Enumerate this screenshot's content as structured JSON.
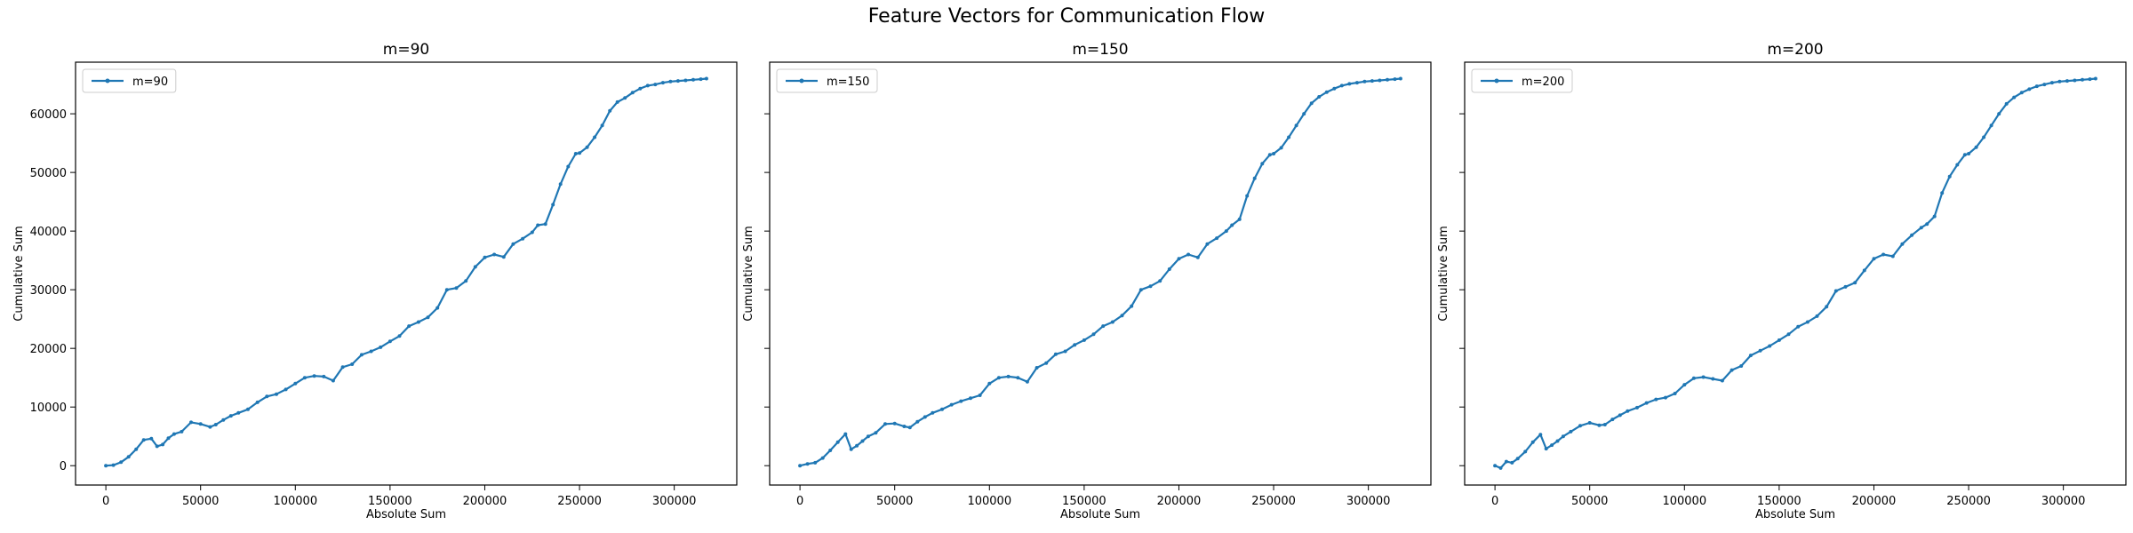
{
  "figure": {
    "title": "Feature Vectors for Communication Flow"
  },
  "style": {
    "line_color": "#1f77b4",
    "axis_color": "#000000"
  },
  "chart_data": [
    {
      "type": "line",
      "title": "m=90",
      "xlabel": "Absolute Sum",
      "ylabel": "Cumulative Sum",
      "xlim": [
        -16000,
        333000
      ],
      "ylim": [
        -3300,
        68800
      ],
      "xticks": [
        0,
        50000,
        100000,
        150000,
        200000,
        250000,
        300000
      ],
      "yticks": [
        0,
        10000,
        20000,
        30000,
        40000,
        50000,
        60000
      ],
      "grid": false,
      "legend": "upper-left",
      "series": [
        {
          "name": "m=90",
          "marker": "dot",
          "x": [
            0,
            4000,
            8000,
            12000,
            16000,
            20000,
            24000,
            27000,
            30000,
            33000,
            36000,
            40000,
            45000,
            50000,
            55000,
            58000,
            62000,
            66000,
            70000,
            75000,
            80000,
            85000,
            90000,
            95000,
            100000,
            105000,
            110000,
            115000,
            120000,
            125000,
            130000,
            135000,
            140000,
            145000,
            150000,
            155000,
            160000,
            165000,
            170000,
            175000,
            180000,
            185000,
            190000,
            195000,
            200000,
            205000,
            210000,
            215000,
            220000,
            225000,
            228000,
            232000,
            236000,
            240000,
            244000,
            248000,
            250000,
            254000,
            258000,
            262000,
            266000,
            270000,
            274000,
            278000,
            282000,
            286000,
            290000,
            294000,
            298000,
            302000,
            306000,
            310000,
            314000,
            317000
          ],
          "y": [
            0,
            100,
            600,
            1500,
            2800,
            4400,
            4600,
            3300,
            3600,
            4700,
            5400,
            5800,
            7400,
            7100,
            6600,
            7000,
            7800,
            8500,
            9000,
            9600,
            10800,
            11800,
            12200,
            13000,
            14000,
            15000,
            15300,
            15200,
            14500,
            16800,
            17300,
            18900,
            19500,
            20200,
            21200,
            22100,
            23800,
            24500,
            25300,
            26900,
            30000,
            30300,
            31500,
            33900,
            35500,
            36000,
            35600,
            37800,
            38700,
            39800,
            41000,
            41200,
            44500,
            48000,
            51000,
            53200,
            53300,
            54300,
            56000,
            58000,
            60500,
            62000,
            62700,
            63600,
            64300,
            64800,
            65000,
            65300,
            65500,
            65600,
            65700,
            65800,
            65900,
            66000
          ]
        }
      ]
    },
    {
      "type": "line",
      "title": "m=150",
      "xlabel": "Absolute Sum",
      "ylabel": "Cumulative Sum",
      "xlim": [
        -16000,
        333000
      ],
      "ylim": [
        -3300,
        68800
      ],
      "xticks": [
        0,
        50000,
        100000,
        150000,
        200000,
        250000,
        300000
      ],
      "yticks": [
        0,
        10000,
        20000,
        30000,
        40000,
        50000,
        60000
      ],
      "grid": false,
      "legend": "upper-left",
      "series": [
        {
          "name": "m=150",
          "marker": "dot",
          "x": [
            0,
            4000,
            8000,
            12000,
            16000,
            20000,
            24000,
            27000,
            30000,
            33000,
            36000,
            40000,
            45000,
            50000,
            55000,
            58000,
            62000,
            66000,
            70000,
            75000,
            80000,
            85000,
            90000,
            95000,
            100000,
            105000,
            110000,
            115000,
            120000,
            125000,
            130000,
            135000,
            140000,
            145000,
            150000,
            155000,
            160000,
            165000,
            170000,
            175000,
            180000,
            185000,
            190000,
            195000,
            200000,
            205000,
            210000,
            215000,
            220000,
            225000,
            228000,
            232000,
            236000,
            240000,
            244000,
            248000,
            250000,
            254000,
            258000,
            262000,
            266000,
            270000,
            274000,
            278000,
            282000,
            286000,
            290000,
            294000,
            298000,
            302000,
            306000,
            310000,
            314000,
            317000
          ],
          "y": [
            0,
            300,
            500,
            1300,
            2600,
            4000,
            5400,
            2800,
            3400,
            4200,
            5000,
            5600,
            7100,
            7200,
            6700,
            6500,
            7500,
            8300,
            9000,
            9600,
            10400,
            11000,
            11500,
            12000,
            14000,
            15000,
            15200,
            15000,
            14300,
            16700,
            17500,
            19000,
            19500,
            20600,
            21400,
            22400,
            23800,
            24500,
            25600,
            27200,
            30000,
            30600,
            31500,
            33500,
            35300,
            36000,
            35500,
            37800,
            38800,
            40000,
            41000,
            42000,
            46000,
            49000,
            51500,
            53000,
            53200,
            54200,
            56000,
            58000,
            60000,
            61800,
            62900,
            63700,
            64300,
            64800,
            65100,
            65300,
            65500,
            65600,
            65700,
            65800,
            65900,
            66000
          ]
        }
      ]
    },
    {
      "type": "line",
      "title": "m=200",
      "xlabel": "Absolute Sum",
      "ylabel": "Cumulative Sum",
      "xlim": [
        -16000,
        333000
      ],
      "ylim": [
        -3300,
        68800
      ],
      "xticks": [
        0,
        50000,
        100000,
        150000,
        200000,
        250000,
        300000
      ],
      "yticks": [
        0,
        10000,
        20000,
        30000,
        40000,
        50000,
        60000
      ],
      "grid": false,
      "legend": "upper-left",
      "series": [
        {
          "name": "m=200",
          "marker": "dot",
          "x": [
            0,
            3000,
            6000,
            9000,
            12000,
            16000,
            20000,
            24000,
            27000,
            30000,
            33000,
            36000,
            40000,
            45000,
            50000,
            55000,
            58000,
            62000,
            66000,
            70000,
            75000,
            80000,
            85000,
            90000,
            95000,
            100000,
            105000,
            110000,
            115000,
            120000,
            125000,
            130000,
            135000,
            140000,
            145000,
            150000,
            155000,
            160000,
            165000,
            170000,
            175000,
            180000,
            185000,
            190000,
            195000,
            200000,
            205000,
            210000,
            215000,
            220000,
            225000,
            228000,
            232000,
            236000,
            240000,
            244000,
            248000,
            250000,
            254000,
            258000,
            262000,
            266000,
            270000,
            274000,
            278000,
            282000,
            286000,
            290000,
            294000,
            298000,
            302000,
            306000,
            310000,
            314000,
            317000
          ],
          "y": [
            0,
            -400,
            700,
            500,
            1200,
            2400,
            4000,
            5300,
            2900,
            3500,
            4200,
            5000,
            5800,
            6800,
            7300,
            6900,
            7000,
            7900,
            8600,
            9300,
            9900,
            10700,
            11300,
            11600,
            12300,
            13800,
            14900,
            15100,
            14800,
            14500,
            16300,
            17000,
            18800,
            19600,
            20400,
            21400,
            22400,
            23700,
            24500,
            25500,
            27100,
            29800,
            30500,
            31200,
            33300,
            35300,
            36000,
            35700,
            37800,
            39300,
            40600,
            41200,
            42500,
            46500,
            49300,
            51300,
            53000,
            53200,
            54300,
            56000,
            58000,
            60000,
            61700,
            62800,
            63600,
            64200,
            64700,
            65000,
            65300,
            65500,
            65600,
            65700,
            65800,
            65900,
            66000
          ]
        }
      ]
    }
  ]
}
